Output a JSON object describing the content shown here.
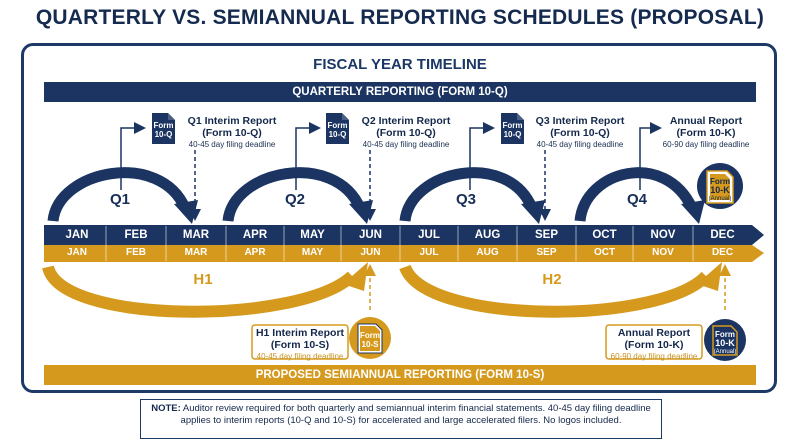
{
  "title": "QUARTERLY VS. SEMIANNUAL REPORTING SCHEDULES (PROPOSAL)",
  "section_title": "FISCAL YEAR TIMELINE",
  "quarterly_bar": "QUARTERLY REPORTING (FORM 10-Q)",
  "semiannual_bar": "PROPOSED SEMIANNUAL REPORTING (FORM 10-S)",
  "months": [
    "JAN",
    "FEB",
    "MAR",
    "APR",
    "MAY",
    "JUN",
    "JUL",
    "AUG",
    "SEP",
    "OCT",
    "NOV",
    "DEC"
  ],
  "quarters": [
    "Q1",
    "Q2",
    "Q3",
    "Q4"
  ],
  "halves": [
    "H1",
    "H2"
  ],
  "quarterly_reports": [
    {
      "title_1": "Q1 Interim Report",
      "title_2": "(Form 10-Q)",
      "deadline": "40-45 day filing deadline",
      "doc_1": "Form",
      "doc_2": "10-Q"
    },
    {
      "title_1": "Q2 Interim Report",
      "title_2": "(Form 10-Q)",
      "deadline": "40-45 day filing deadline",
      "doc_1": "Form",
      "doc_2": "10-Q"
    },
    {
      "title_1": "Q3 Interim Report",
      "title_2": "(Form 10-Q)",
      "deadline": "40-45 day filing deadline",
      "doc_1": "Form",
      "doc_2": "10-Q"
    },
    {
      "title_1": "Annual Report",
      "title_2": "(Form 10-K)",
      "deadline": "60-90 day filing deadline",
      "doc_1": "Form",
      "doc_2": "10-K",
      "doc_3": "(Annual)"
    }
  ],
  "semiannual_reports": [
    {
      "title_1": "H1 Interim Report",
      "title_2": "(Form 10-S)",
      "deadline": "40-45 day filing deadline",
      "doc_1": "Form",
      "doc_2": "10-S"
    },
    {
      "title_1": "Annual Report",
      "title_2": "(Form 10-K)",
      "deadline": "60-90 day filing deadline",
      "doc_1": "Form",
      "doc_2": "10-K",
      "doc_3": "(Annual)"
    }
  ],
  "note": {
    "label": "NOTE:",
    "text": " Auditor review required for both quarterly and semiannual interim financial statements. 40-45 day filing deadline applies to interim reports (10-Q and 10-S) for accelerated and large accelerated filers. No logos included."
  },
  "colors": {
    "navy": "#1b3462",
    "gold": "#d59a1d"
  }
}
